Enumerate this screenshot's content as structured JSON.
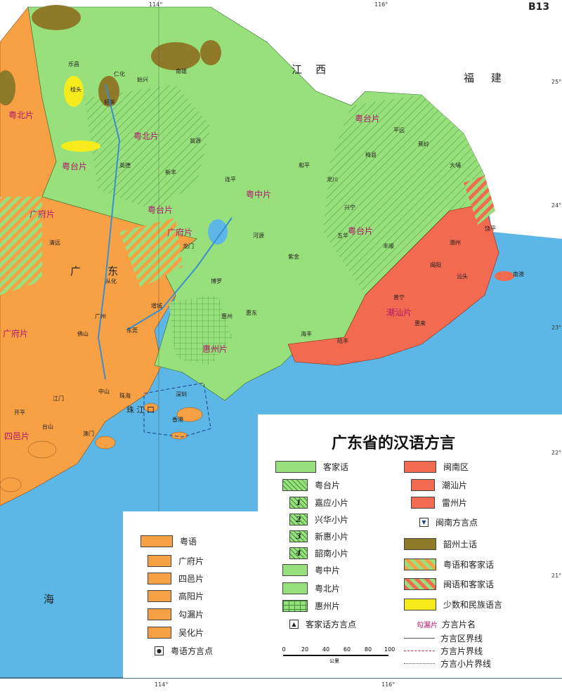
{
  "page_code": "B13",
  "title": "广东省的汉语方言",
  "colors": {
    "sea": "#5cb6e6",
    "hakka": "#98e07c",
    "yue": "#f7a144",
    "min": "#f26a4f",
    "shaozhou": "#8f7a2a",
    "minority": "#f6ec1c"
  },
  "map_labels": {
    "jiangxi_1": "江",
    "jiangxi_2": "西",
    "fujian_1": "福",
    "fujian_2": "建",
    "guangdong_1": "广",
    "guangdong_2": "东",
    "sea": "海",
    "zhujiang": "珠 江 口",
    "yuebei_1": "粤北片",
    "yuebei_2": "粤北片",
    "yuetai_1": "粤台片",
    "yuetai_2": "粤台片",
    "yuetai_3": "粤台片",
    "yuetai_4": "粤台片",
    "yuezhong": "粤中片",
    "chaoshan": "潮汕片",
    "huizhou": "惠州片",
    "guangfu_1": "广府片",
    "guangfu_2": "广府片",
    "guangfu_3": "广府片",
    "siyi": "四邑片",
    "cities": [
      "乐昌",
      "桂头",
      "韶关",
      "始兴",
      "南雄",
      "仁化",
      "连平",
      "和平",
      "龙川",
      "梅县",
      "大埔",
      "饶平",
      "潮州",
      "汕头",
      "揭阳",
      "普宁",
      "惠来",
      "陆丰",
      "海丰",
      "惠东",
      "惠州",
      "东莞",
      "广州",
      "佛山",
      "中山",
      "江门",
      "台山",
      "开平",
      "珠海",
      "深圳",
      "香港",
      "澳门",
      "清远",
      "英德",
      "翁源",
      "新丰",
      "河源",
      "紫金",
      "五华",
      "兴宁",
      "平远",
      "蕉岭",
      "丰顺",
      "南澳",
      "从化",
      "增城",
      "博罗",
      "龙门"
    ]
  },
  "coords": {
    "lon114_top": "114°",
    "lon116_top": "116°",
    "lon114_bot": "114°",
    "lon116_bot": "116°",
    "lat25": "25°",
    "lat24": "24°",
    "lat23": "23°",
    "lat22": "22°",
    "lat21": "21°"
  },
  "legend": {
    "left": [
      "粤语",
      "广府片",
      "四邑片",
      "高阳片",
      "勾漏片",
      "吴化片",
      "粤语方言点"
    ],
    "mid": [
      "客家话",
      "粤台片",
      "嘉应小片",
      "兴华小片",
      "新惠小片",
      "韶南小片",
      "粤中片",
      "粤北片",
      "惠州片",
      "客家话方言点"
    ],
    "mid_nums": [
      "1",
      "2",
      "3",
      "4"
    ],
    "right": [
      "闽南区",
      "潮汕片",
      "雷州片",
      "闽南方言点",
      "韶州土话",
      "粤语和客家话",
      "闽语和客家话",
      "少数和民族语言"
    ],
    "lines": {
      "sample": "勾漏片",
      "name": "方言片名",
      "region_border": "方言区界线",
      "pian_border": "方言片界线",
      "xiaopian_border": "方言小片界线"
    },
    "scale": {
      "ticks": [
        "0",
        "20",
        "40",
        "60",
        "80",
        "100"
      ],
      "unit": "公里"
    }
  }
}
